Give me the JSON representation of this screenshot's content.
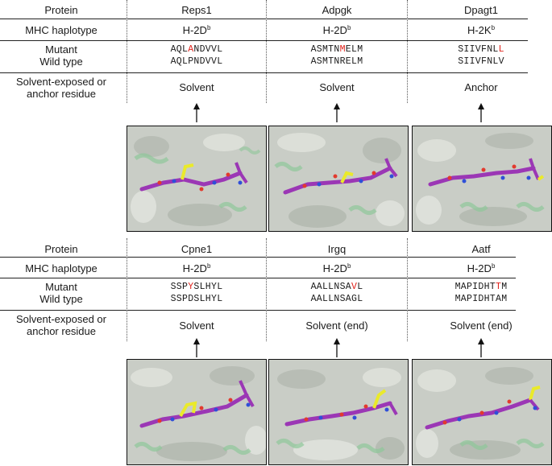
{
  "blocks": [
    {
      "labels": {
        "protein": "Protein",
        "haplotype": "MHC haplotype",
        "mutant": "Mutant",
        "wild_type": "Wild type",
        "solvent_anchor_1": "Solvent-exposed or",
        "solvent_anchor_2": "anchor residue"
      },
      "columns": [
        {
          "protein": "Reps1",
          "haplotype_base": "H-2D",
          "haplotype_sup": "b",
          "mutant": {
            "pre": "AQL",
            "mut": "A",
            "post": "NDVVL"
          },
          "wild_type": "AQLPNDVVL",
          "residue": "Solvent"
        },
        {
          "protein": "Adpgk",
          "haplotype_base": "H-2D",
          "haplotype_sup": "b",
          "mutant": {
            "pre": "ASMTN",
            "mut": "M",
            "post": "ELM"
          },
          "wild_type": "ASMTNRELM",
          "residue": "Solvent"
        },
        {
          "protein": "Dpagt1",
          "haplotype_base": "H-2K",
          "haplotype_sup": "b",
          "mutant": {
            "pre": "SIIVFNL",
            "mut": "L",
            "post": ""
          },
          "wild_type": "SIIVFNLV",
          "residue": "Anchor"
        }
      ]
    },
    {
      "labels": {
        "protein": "Protein",
        "haplotype": "MHC haplotype",
        "mutant": "Mutant",
        "wild_type": "Wild type",
        "solvent_anchor_1": "Solvent-exposed or",
        "solvent_anchor_2": "anchor residue"
      },
      "columns": [
        {
          "protein": "Cpne1",
          "haplotype_base": "H-2D",
          "haplotype_sup": "b",
          "mutant": {
            "pre": "SSP",
            "mut": "Y",
            "post": "SLHYL"
          },
          "wild_type": "SSPDSLHYL",
          "residue": "Solvent"
        },
        {
          "protein": "Irgq",
          "haplotype_base": "H-2D",
          "haplotype_sup": "b",
          "mutant": {
            "pre": "AALLNSA",
            "mut": "V",
            "post": "L"
          },
          "wild_type": "AALLNSAGL",
          "residue": "Solvent (end)"
        },
        {
          "protein": "Aatf",
          "haplotype_base": "H-2D",
          "haplotype_sup": "b",
          "mutant": {
            "pre": "MAPIDHT",
            "mut": "T",
            "post": "M"
          },
          "wild_type": "MAPIDHTAM",
          "residue": "Solvent (end)"
        }
      ]
    }
  ],
  "colors": {
    "surface": "#c9cdc6",
    "helix": "#8fc79a",
    "peptide_carbon": "#9b37b5",
    "mutant_residue": "#eaea2a",
    "oxygen": "#e23a2e",
    "nitrogen": "#2f4fd8",
    "mutation_text": "#e0221b"
  }
}
